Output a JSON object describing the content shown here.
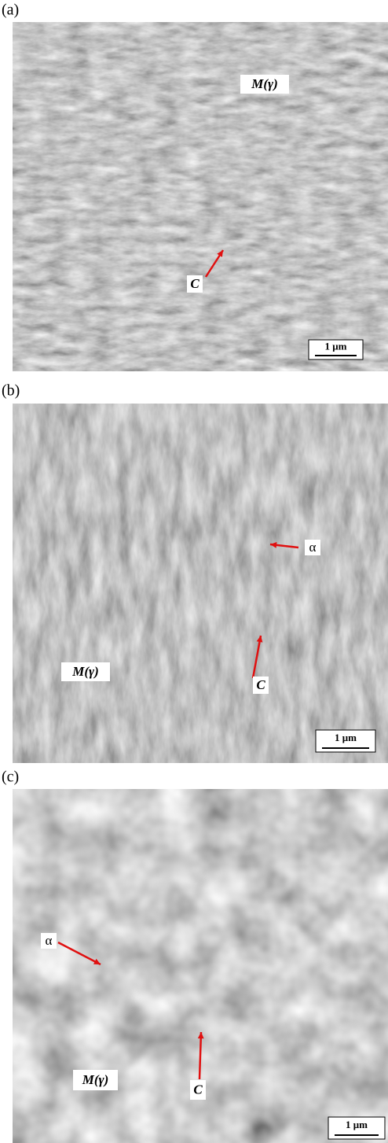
{
  "panels": [
    {
      "label": "(a)",
      "annotations": [
        {
          "text": "M(γ)"
        },
        {
          "text": "C"
        }
      ],
      "scale_bar": "1 μm"
    },
    {
      "label": "(b)",
      "annotations": [
        {
          "text": "α"
        },
        {
          "text": "C"
        },
        {
          "text": "M(γ)"
        }
      ],
      "scale_bar": "1 μm"
    },
    {
      "label": "(c)",
      "annotations": [
        {
          "text": "α"
        },
        {
          "text": "C"
        },
        {
          "text": "M(γ)"
        }
      ],
      "scale_bar": "1 μm"
    }
  ]
}
